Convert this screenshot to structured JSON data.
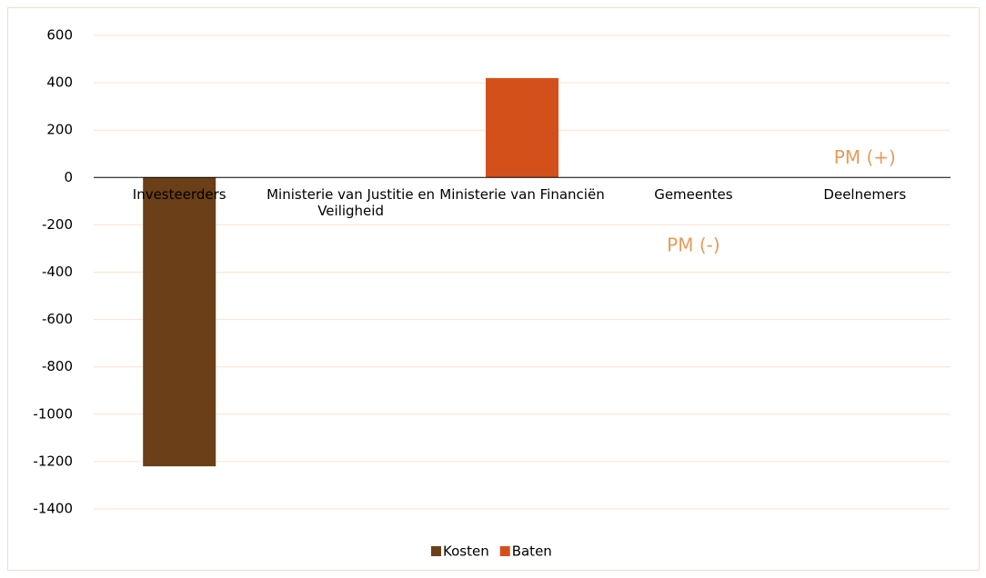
{
  "chart_data": {
    "type": "bar",
    "categories": [
      "Investeerders",
      "Ministerie van Justitie en Veiligheid",
      "Ministerie van Financiën",
      "Gemeentes",
      "Deelnemers"
    ],
    "series": [
      {
        "name": "Kosten",
        "color": "#6b3f17",
        "values": [
          -1220,
          null,
          null,
          null,
          null
        ]
      },
      {
        "name": "Baten",
        "color": "#d4501b",
        "values": [
          null,
          null,
          420,
          null,
          null
        ]
      }
    ],
    "annotations": [
      {
        "text": "PM (+)"
      },
      {
        "text": "PM (-)"
      }
    ],
    "annotation_color": "#e39c5a",
    "ylim": [
      -1400,
      600
    ],
    "yticks": [
      -1400,
      -1200,
      -1000,
      -800,
      -600,
      -400,
      -200,
      0,
      200,
      400,
      600
    ],
    "grid": true,
    "legend": "bottom"
  }
}
